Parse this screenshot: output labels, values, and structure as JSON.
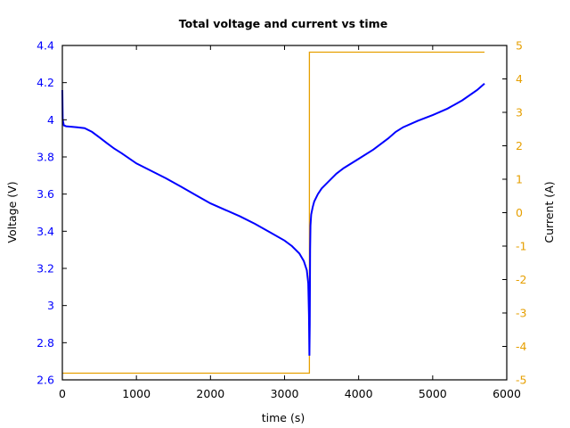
{
  "chart_data": {
    "type": "line",
    "title": "Total voltage and current vs time",
    "xlabel": "time (s)",
    "ylabel": "Voltage (V)",
    "y2label": "Current (A)",
    "xlim": [
      0,
      6000
    ],
    "ylim": [
      2.6,
      4.4
    ],
    "y2lim": [
      -5,
      5
    ],
    "grid": false,
    "legend": null,
    "x_ticks": [
      "0",
      "1000",
      "2000",
      "3000",
      "4000",
      "5000",
      "6000"
    ],
    "y_ticks": [
      "2.6",
      "2.8",
      "3",
      "3.2",
      "3.4",
      "3.6",
      "3.8",
      "4",
      "4.2",
      "4.4"
    ],
    "y2_ticks": [
      "-5",
      "-4",
      "-3",
      "-2",
      "-1",
      "0",
      "1",
      "2",
      "3",
      "4",
      "5"
    ],
    "colors": {
      "voltage": "#0000ff",
      "current": "#e69f00",
      "axes": "#000000"
    },
    "series": [
      {
        "name": "Voltage",
        "axis": "left",
        "color": "#0000ff",
        "x": [
          0,
          5,
          20,
          50,
          100,
          200,
          300,
          400,
          500,
          600,
          700,
          800,
          1000,
          1200,
          1400,
          1600,
          1800,
          2000,
          2200,
          2400,
          2600,
          2800,
          3000,
          3100,
          3200,
          3260,
          3300,
          3320,
          3330,
          3335,
          3340,
          3345,
          3350,
          3360,
          3380,
          3400,
          3450,
          3500,
          3600,
          3700,
          3800,
          4000,
          4200,
          4400,
          4500,
          4600,
          4800,
          5000,
          5200,
          5400,
          5600,
          5700
        ],
        "values": [
          4.16,
          4.0,
          3.97,
          3.965,
          3.963,
          3.96,
          3.955,
          3.935,
          3.905,
          3.875,
          3.845,
          3.82,
          3.765,
          3.725,
          3.685,
          3.64,
          3.595,
          3.55,
          3.515,
          3.48,
          3.44,
          3.395,
          3.35,
          3.32,
          3.28,
          3.24,
          3.19,
          3.12,
          2.95,
          2.73,
          2.9,
          3.3,
          3.43,
          3.49,
          3.53,
          3.56,
          3.6,
          3.63,
          3.67,
          3.71,
          3.74,
          3.79,
          3.84,
          3.9,
          3.935,
          3.96,
          3.995,
          4.025,
          4.06,
          4.105,
          4.16,
          4.195
        ]
      },
      {
        "name": "Current",
        "axis": "right",
        "color": "#e69f00",
        "x": [
          0,
          3335,
          3335,
          5700
        ],
        "values": [
          -4.8,
          -4.8,
          4.8,
          4.8
        ]
      }
    ]
  }
}
